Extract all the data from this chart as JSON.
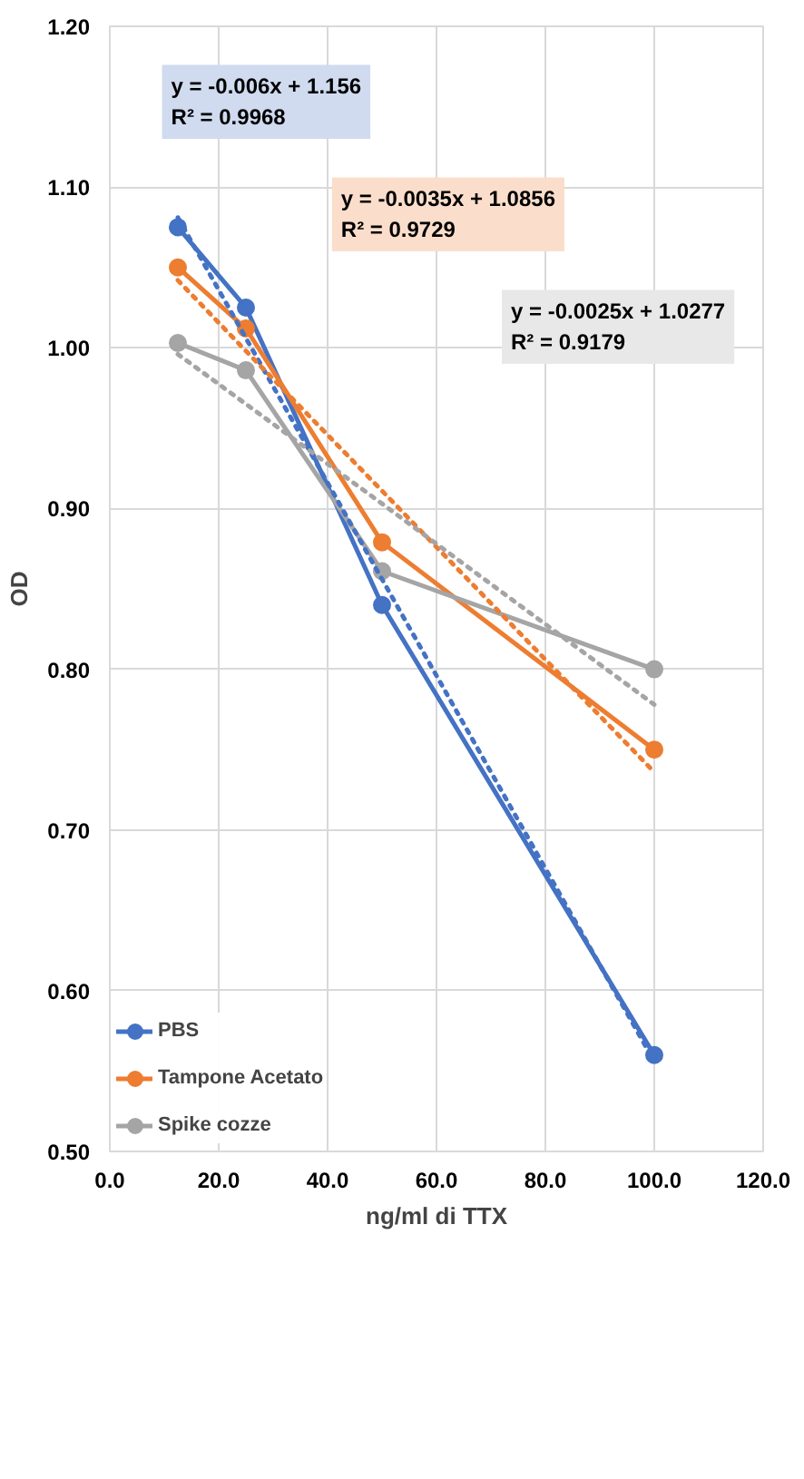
{
  "chart_data": {
    "type": "line",
    "xlabel": "ng/ml di TTX",
    "ylabel": "OD",
    "x": [
      12.5,
      25,
      50,
      100
    ],
    "series": [
      {
        "name": "PBS",
        "color": "#4472c4",
        "values": [
          1.075,
          1.025,
          0.84,
          0.56
        ]
      },
      {
        "name": "Tampone Acetato",
        "color": "#ed7d31",
        "values": [
          1.05,
          1.012,
          0.879,
          0.75
        ]
      },
      {
        "name": "Spike cozze",
        "color": "#a5a5a5",
        "values": [
          1.003,
          0.986,
          0.861,
          0.8
        ]
      },
      {
        "color": "#4472c4",
        "values": [
          1.081,
          1.006,
          0.856,
          0.556
        ],
        "line_style": "dotted",
        "marker": "none"
      },
      {
        "color": "#ed7d31",
        "values": [
          1.042,
          0.998,
          0.911,
          0.736
        ],
        "line_style": "dotted",
        "marker": "none"
      },
      {
        "color": "#a5a5a5",
        "values": [
          0.996,
          0.965,
          0.903,
          0.778
        ],
        "line_style": "dotted",
        "marker": "none"
      }
    ],
    "marker": "circle",
    "line_style": "solid",
    "xlim": [
      0,
      120
    ],
    "ylim": [
      0.5,
      1.2
    ],
    "xticks": [
      {
        "value": 0,
        "label": "0.0"
      },
      {
        "value": 20,
        "label": "20.0"
      },
      {
        "value": 40,
        "label": "40.0"
      },
      {
        "value": 60,
        "label": "60.0"
      },
      {
        "value": 80,
        "label": "80.0"
      },
      {
        "value": 100,
        "label": "100.0"
      },
      {
        "value": 120,
        "label": "120.0"
      }
    ],
    "yticks": [
      {
        "value": 0.5,
        "label": "0.50"
      },
      {
        "value": 0.6,
        "label": "0.60"
      },
      {
        "value": 0.7,
        "label": "0.70"
      },
      {
        "value": 0.8,
        "label": "0.80"
      },
      {
        "value": 0.9,
        "label": "0.90"
      },
      {
        "value": 1.0,
        "label": "1.00"
      },
      {
        "value": 1.1,
        "label": "1.10"
      },
      {
        "value": 1.2,
        "label": "1.20"
      }
    ],
    "annotations": [
      "y = -0.006x + 1.156\nR² = 0.9968",
      "y = -0.0035x + 1.0856\nR² = 0.9729",
      "y = -0.0025x + 1.0277\nR² = 0.9179"
    ],
    "grid": true,
    "legend": "bottom left"
  }
}
